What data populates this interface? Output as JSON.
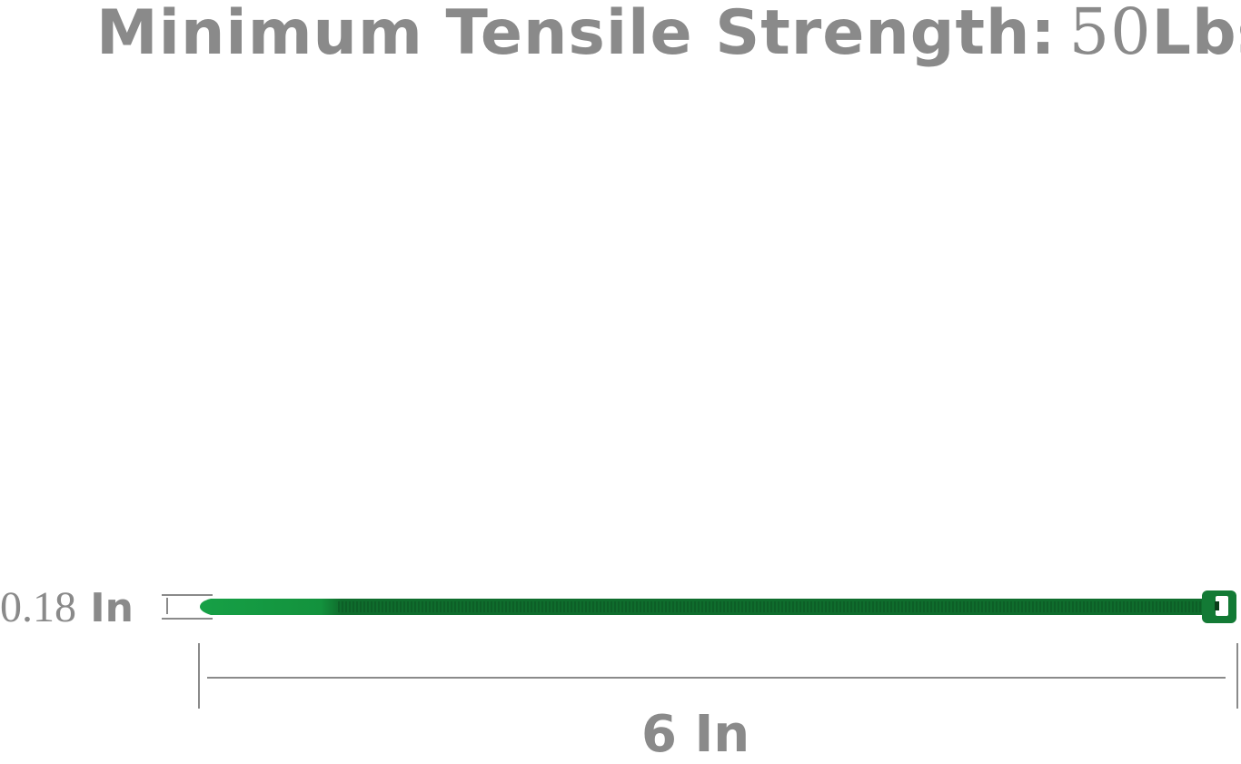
{
  "title": {
    "label": "Minimum Tensile Strength:",
    "value": "50",
    "unit": "Lbs"
  },
  "dimensions": {
    "width": {
      "value": "0.18",
      "unit": "In"
    },
    "length": {
      "label": "6 In"
    }
  },
  "colors": {
    "tie": "#138a3a",
    "tie_dark": "#0f6a2c",
    "text": "#8a8a8a"
  }
}
